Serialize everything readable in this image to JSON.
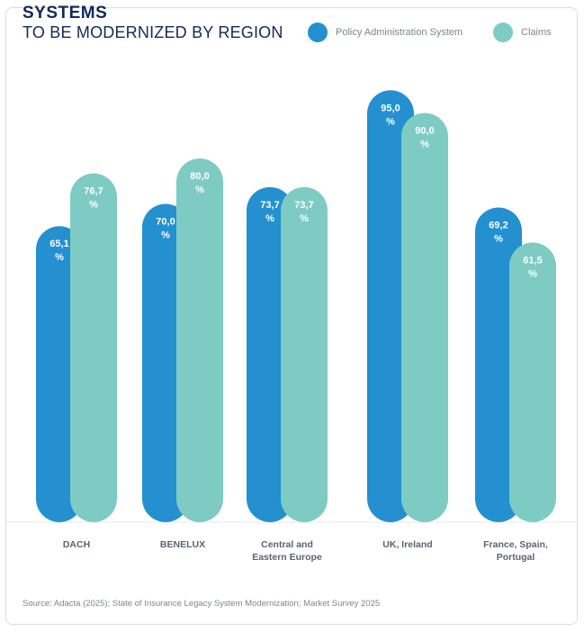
{
  "header": {
    "title_line1": "SYSTEMS",
    "title_line2": "TO BE MODERNIZED BY REGION"
  },
  "chart_data": {
    "type": "bar",
    "title": "SYSTEMS TO BE MODERNIZED BY REGION",
    "categories": [
      "DACH",
      "BENELUX",
      "Central and Eastern Europe",
      "UK, Ireland",
      "France, Spain, Portugal"
    ],
    "category_lines": [
      [
        "DACH"
      ],
      [
        "BENELUX"
      ],
      [
        "Central and",
        "Eastern Europe"
      ],
      [
        "UK, Ireland"
      ],
      [
        "France, Spain,",
        "Portugal"
      ]
    ],
    "series": [
      {
        "name": "Policy Administration System",
        "color": "#2490d0",
        "values": [
          65.1,
          70.0,
          73.7,
          95.0,
          69.2
        ],
        "labels": [
          "65,1",
          "70,0",
          "73,7",
          "95,0",
          "69,2"
        ]
      },
      {
        "name": "Claims",
        "color": "#7ecbc4",
        "values": [
          76.7,
          80.0,
          73.7,
          90.0,
          61.5
        ],
        "labels": [
          "76,7",
          "80,0",
          "73,7",
          "90,0",
          "61,5"
        ]
      }
    ],
    "unit": "%",
    "ylim": [
      0,
      100
    ],
    "grid": false,
    "legend_position": "top-right",
    "xlabel": "",
    "ylabel": ""
  },
  "footer": {
    "source": "Source: Adacta (2025); State of Insurance Legacy System Modernization; Market Survey 2025"
  }
}
